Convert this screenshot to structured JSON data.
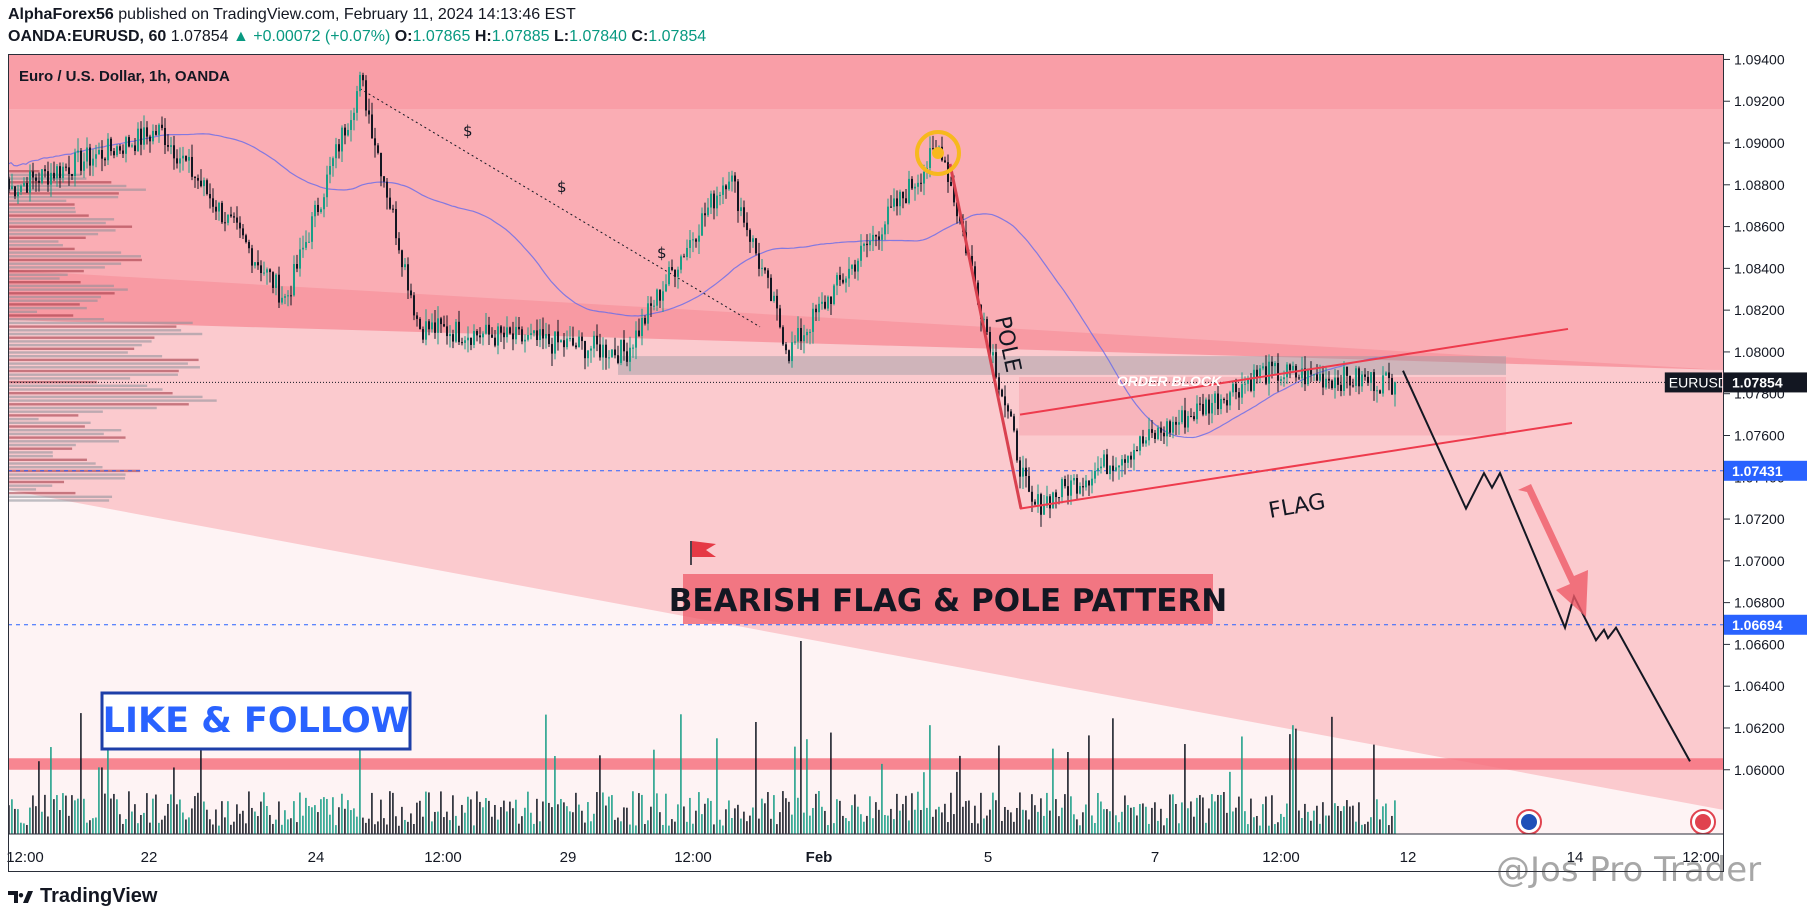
{
  "header": {
    "author": "AlphaForex56",
    "published_text": "published on TradingView.com, February 11, 2024 14:13:46 EST",
    "symbol": "OANDA:EURUSD, 60",
    "last": "1.07854",
    "change": "▲ +0.00072 (+0.07%)",
    "o_label": "O:",
    "o_value": "1.07865",
    "h_label": "H:",
    "h_value": "1.07885",
    "l_label": "L:",
    "l_value": "1.07840",
    "c_label": "C:",
    "c_value": "1.07854"
  },
  "footer": {
    "brand": "TradingView",
    "watermark": "@Jos Pro Trader"
  },
  "chart_data": {
    "type": "candlestick",
    "title": "Euro / U.S. Dollar, 1h, OANDA",
    "ylim": [
      1.0586,
      1.0945
    ],
    "y_ticks": [
      "1.09400",
      "1.09200",
      "1.09000",
      "1.08800",
      "1.08600",
      "1.08400",
      "1.08200",
      "1.08000",
      "1.07800",
      "1.07600",
      "1.07400",
      "1.07200",
      "1.07000",
      "1.06800",
      "1.06600",
      "1.06400",
      "1.06200",
      "1.06000"
    ],
    "x_ticks": [
      "12:00",
      "22",
      "24",
      "12:00",
      "29",
      "12:00",
      "Feb",
      "5",
      "7",
      "12:00",
      "12",
      "14",
      "12:00"
    ],
    "price_labels": [
      {
        "name": "EURUSD",
        "value": "1.07854",
        "color": "#131722"
      },
      {
        "name": "",
        "value": "1.07431",
        "color": "#2962ff"
      },
      {
        "name": "",
        "value": "1.06694",
        "color": "#2962ff"
      }
    ],
    "levels": {
      "current": 1.07854,
      "support1": 1.07431,
      "support2": 1.06694,
      "order_block_top": 1.0798,
      "order_block_bottom": 1.0789,
      "target_zone_top": 1.06055,
      "target_zone_bottom": 1.06
    },
    "key_points": [
      {
        "label": "start",
        "price": 1.0878
      },
      {
        "label": "jan-22-high",
        "price": 1.0906
      },
      {
        "label": "jan-24-low",
        "price": 1.0825
      },
      {
        "label": "jan-25-high",
        "price": 1.093
      },
      {
        "label": "jan-26-low",
        "price": 1.0812
      },
      {
        "label": "jan-30-low",
        "price": 1.08
      },
      {
        "label": "jan-31-high",
        "price": 1.0886
      },
      {
        "label": "feb-1-low",
        "price": 1.08
      },
      {
        "label": "feb-2-high",
        "price": 1.0899
      },
      {
        "label": "feb-5-low",
        "price": 1.0725
      },
      {
        "label": "feb-8-high",
        "price": 1.079
      },
      {
        "label": "last",
        "price": 1.07854
      }
    ],
    "annotations": {
      "pole": "POLE",
      "flag": "FLAG",
      "order_block": "ORDER BLOCK",
      "pattern": "BEARISH FLAG & POLE PATTERN",
      "cta": "LIKE & FOLLOW"
    },
    "projection": [
      1.0791,
      1.0725,
      1.0742,
      1.0735,
      1.0742,
      1.0668,
      1.0683,
      1.0662,
      1.0667,
      1.0663,
      1.0668,
      1.0604
    ]
  }
}
